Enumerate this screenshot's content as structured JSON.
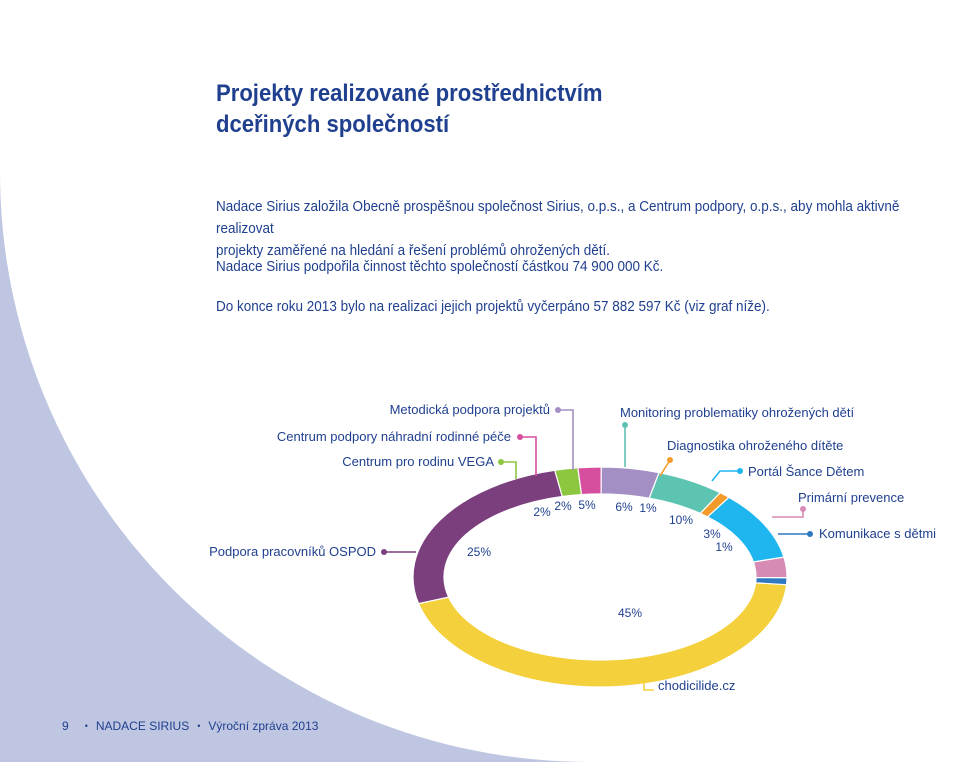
{
  "page": {
    "title_line1": "Projekty realizované prostřednictvím",
    "title_line2": "dceřiných společností",
    "para1_line1": "Nadace Sirius založila Obecně prospěšnou společnost Sirius, o.p.s., a Centrum podpory, o.p.s., aby mohla aktivně realizovat",
    "para1_line2": "projekty zaměřené na hledání a řešení problémů ohrožených dětí.",
    "para2": "Nadace Sirius podpořila činnost těchto společností částkou 74 900 000 Kč.",
    "para3": "Do konce roku 2013 bylo na realizaci jejich projektů vyčerpáno 57 882 597 Kč (viz graf níže)."
  },
  "footer": {
    "page_number": "9",
    "organization": "NADACE SIRIUS",
    "report": "Výroční zpráva 2013"
  },
  "colors": {
    "background": "#bfc6e1",
    "page": "#ffffff",
    "title": "#1f3f8f"
  },
  "chart_data": {
    "type": "pie",
    "donut": true,
    "unit": "%",
    "slices": [
      {
        "label": "chodicilide.cz",
        "value": 45,
        "value_label": "45%",
        "color": "#f4d03c"
      },
      {
        "label": "Podpora pracovníků OSPOD",
        "value": 25,
        "value_label": "25%",
        "color": "#7b3f7d"
      },
      {
        "label": "Centrum pro rodinu VEGA",
        "value": 2,
        "value_label": "2%",
        "color": "#8dc63f"
      },
      {
        "label": "Centrum podpory náhradní rodinné péče",
        "value": 2,
        "value_label": "2%",
        "color": "#d64f9e"
      },
      {
        "label": "Metodická podpora projektů",
        "value": 5,
        "value_label": "5%",
        "color": "#a48fc4"
      },
      {
        "label": "Monitoring problematiky ohrožených dětí",
        "value": 6,
        "value_label": "6%",
        "color": "#5ec4b2"
      },
      {
        "label": "Diagnostika ohroženého dítěte",
        "value": 1,
        "value_label": "1%",
        "color": "#f39a2b"
      },
      {
        "label": "Portál Šance Dětem",
        "value": 10,
        "value_label": "10%",
        "color": "#1fb6ef"
      },
      {
        "label": "Primární prevence",
        "value": 3,
        "value_label": "3%",
        "color": "#d68ab4"
      },
      {
        "label": "Komunikace s dětmi",
        "value": 1,
        "value_label": "1%",
        "color": "#2f79c0"
      }
    ]
  }
}
